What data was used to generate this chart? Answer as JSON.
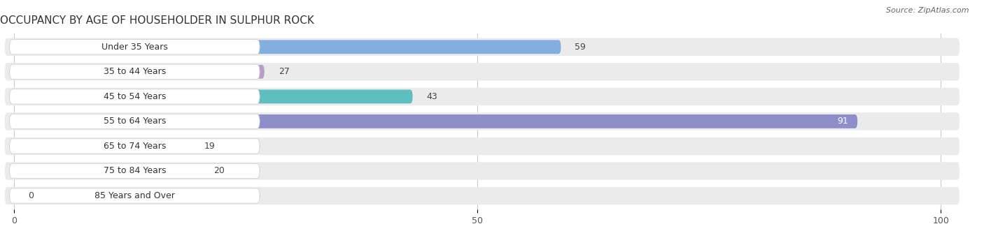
{
  "title": "OCCUPANCY BY AGE OF HOUSEHOLDER IN SULPHUR ROCK",
  "source": "Source: ZipAtlas.com",
  "categories": [
    "Under 35 Years",
    "35 to 44 Years",
    "45 to 54 Years",
    "55 to 64 Years",
    "65 to 74 Years",
    "75 to 84 Years",
    "85 Years and Over"
  ],
  "values": [
    59,
    27,
    43,
    91,
    19,
    20,
    0
  ],
  "bar_colors": [
    "#85aee0",
    "#b99dc8",
    "#5dbfbf",
    "#8e8ec8",
    "#f0a0b8",
    "#f0c090",
    "#f0a0b8"
  ],
  "row_bg_color": "#ebebeb",
  "label_box_color": "#ffffff",
  "xlim": [
    0,
    100
  ],
  "title_fontsize": 11,
  "label_fontsize": 9,
  "value_fontsize": 9,
  "background_color": "#ffffff",
  "xticks": [
    0,
    50,
    100
  ]
}
